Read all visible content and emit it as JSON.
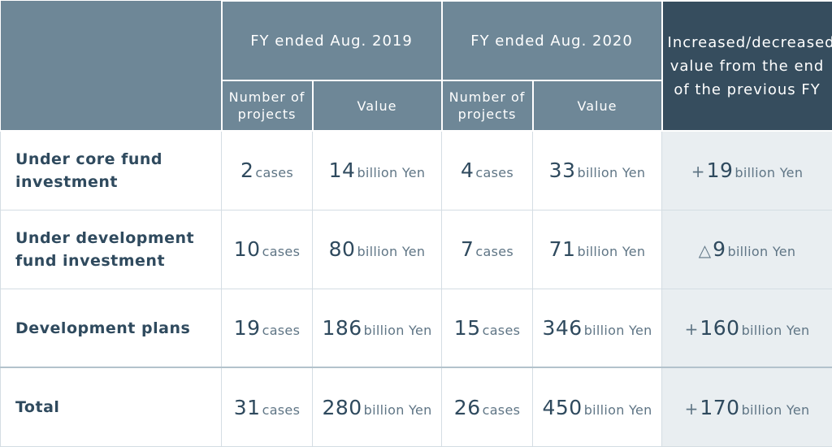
{
  "header": {
    "fy2019": "FY ended Aug. 2019",
    "fy2020": "FY ended Aug. 2020",
    "change": "Increased/decreased value from the end of the previous FY",
    "num_projects": "Number of projects",
    "value": "Value"
  },
  "rows": [
    {
      "label": "Under core fund investment",
      "fy2019_cases": "2",
      "fy2019_value": "14",
      "fy2020_cases": "4",
      "fy2020_value": "33",
      "change_sign": "+",
      "change_value": "19"
    },
    {
      "label": "Under development fund investment",
      "fy2019_cases": "10",
      "fy2019_value": "80",
      "fy2020_cases": "7",
      "fy2020_value": "71",
      "change_sign": "△",
      "change_value": "9"
    },
    {
      "label": "Development plans",
      "fy2019_cases": "19",
      "fy2019_value": "186",
      "fy2020_cases": "15",
      "fy2020_value": "346",
      "change_sign": "+",
      "change_value": "160"
    },
    {
      "label": "Total",
      "fy2019_cases": "31",
      "fy2019_value": "280",
      "fy2020_cases": "26",
      "fy2020_value": "450",
      "change_sign": "+",
      "change_value": "170"
    }
  ],
  "units": {
    "cases": "cases",
    "value": "billion Yen"
  },
  "colors": {
    "header": "#6e8797",
    "header_dark": "#364d5e",
    "text": "#2f4a5e",
    "change_bg": "#e9eef1"
  }
}
